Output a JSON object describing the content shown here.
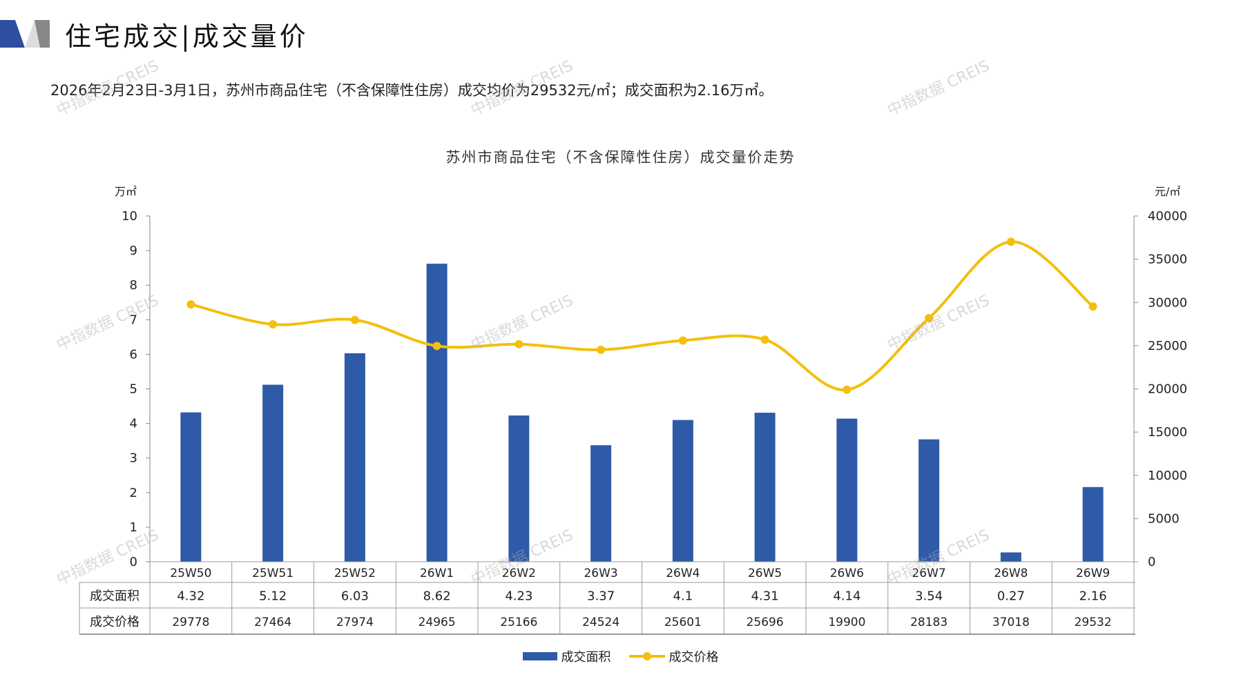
{
  "header": {
    "title": "住宅成交|成交量价",
    "summary": "2026年2月23日-3月1日，苏州市商品住宅（不含保障性住房）成交均价为29532元/㎡；成交面积为2.16万㎡。"
  },
  "watermark": "中指数据 CREIS",
  "colors": {
    "bar": "#2E5AA7",
    "line": "#F3BF0B",
    "accent": "#2E4FA0"
  },
  "chart_data": {
    "type": "bar+line",
    "title": "苏州市商品住宅（不含保障性住房）成交量价走势",
    "categories": [
      "25W50",
      "25W51",
      "25W52",
      "26W1",
      "26W2",
      "26W3",
      "26W4",
      "26W5",
      "26W6",
      "26W7",
      "26W8",
      "26W9"
    ],
    "series": [
      {
        "name": "成交面积",
        "type": "bar",
        "axis": "left",
        "values": [
          4.32,
          5.12,
          6.03,
          8.62,
          4.23,
          3.37,
          4.1,
          4.31,
          4.14,
          3.54,
          0.27,
          2.16
        ],
        "labels": [
          "4.32",
          "5.12",
          "6.03",
          "8.62",
          "4.23",
          "3.37",
          "4.1",
          "4.31",
          "4.14",
          "3.54",
          "0.27",
          "2.16"
        ]
      },
      {
        "name": "成交价格",
        "type": "line",
        "axis": "right",
        "values": [
          29778,
          27464,
          27974,
          24965,
          25166,
          24524,
          25601,
          25696,
          19900,
          28183,
          37018,
          29532
        ],
        "labels": [
          "29778",
          "27464",
          "27974",
          "24965",
          "25166",
          "24524",
          "25601",
          "25696",
          "19900",
          "28183",
          "37018",
          "29532"
        ]
      }
    ],
    "y_left": {
      "label": "万㎡",
      "range": [
        0,
        10
      ],
      "ticks": [
        "0",
        "1",
        "2",
        "3",
        "4",
        "5",
        "6",
        "7",
        "8",
        "9",
        "10"
      ]
    },
    "y_right": {
      "label": "元/㎡",
      "range": [
        0,
        40000
      ],
      "ticks": [
        "0",
        "5000",
        "10000",
        "15000",
        "20000",
        "25000",
        "30000",
        "35000",
        "40000"
      ]
    },
    "legend": "bottom-center",
    "data_table": true
  }
}
